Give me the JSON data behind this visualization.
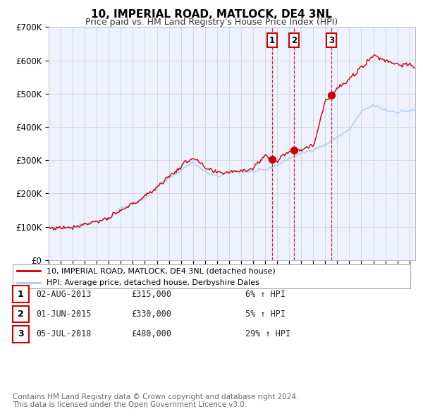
{
  "title": "10, IMPERIAL ROAD, MATLOCK, DE4 3NL",
  "subtitle": "Price paid vs. HM Land Registry's House Price Index (HPI)",
  "title_fontsize": 11,
  "subtitle_fontsize": 9,
  "line1_label": "10, IMPERIAL ROAD, MATLOCK, DE4 3NL (detached house)",
  "line2_label": "HPI: Average price, detached house, Derbyshire Dales",
  "line1_color": "#cc0000",
  "line2_color": "#aaccff",
  "background_color": "#eef2ff",
  "plot_bg_color": "#eef2ff",
  "ylim": [
    0,
    700000
  ],
  "yticks": [
    0,
    100000,
    200000,
    300000,
    400000,
    500000,
    600000,
    700000
  ],
  "ytick_labels": [
    "£0",
    "£100K",
    "£200K",
    "£300K",
    "£400K",
    "£500K",
    "£600K",
    "£700K"
  ],
  "xmin": 1995.0,
  "xmax": 2025.5,
  "transactions": [
    {
      "num": 1,
      "date": "02-AUG-2013",
      "year": 2013.58,
      "price": 315000,
      "hpi_pct": "6%",
      "direction": "↑"
    },
    {
      "num": 2,
      "date": "01-JUN-2015",
      "year": 2015.41,
      "price": 330000,
      "hpi_pct": "5%",
      "direction": "↑"
    },
    {
      "num": 3,
      "date": "05-JUL-2018",
      "year": 2018.51,
      "price": 480000,
      "hpi_pct": "29%",
      "direction": "↑"
    }
  ],
  "footnote_line1": "Contains HM Land Registry data © Crown copyright and database right 2024.",
  "footnote_line2": "This data is licensed under the Open Government Licence v3.0.",
  "footnote_fontsize": 7.5,
  "grid_color": "#cccccc",
  "legend_box_color": "#cc0000",
  "hpi_waypoints_x": [
    1995,
    1997,
    1998,
    2000,
    2001,
    2003,
    2004,
    2007,
    2008,
    2009,
    2010,
    2012,
    2013,
    2014,
    2015,
    2016,
    2018,
    2019,
    2020,
    2021,
    2022,
    2023,
    2024,
    2025.5
  ],
  "hpi_waypoints_y": [
    95000,
    100000,
    110000,
    125000,
    155000,
    185000,
    220000,
    295000,
    265000,
    250000,
    265000,
    265000,
    270000,
    285000,
    305000,
    320000,
    345000,
    370000,
    390000,
    445000,
    465000,
    450000,
    445000,
    450000
  ],
  "red_waypoints_x": [
    1995,
    1997,
    2000,
    2003,
    2007,
    2008,
    2009,
    2012,
    2013,
    2014,
    2015,
    2016,
    2017,
    2018,
    2019,
    2020,
    2021,
    2022,
    2023,
    2024,
    2025.5
  ],
  "red_waypoints_y": [
    95000,
    100000,
    125000,
    190000,
    310000,
    275000,
    260000,
    275000,
    315000,
    295000,
    330000,
    335000,
    340000,
    480000,
    515000,
    540000,
    580000,
    615000,
    600000,
    590000,
    580000
  ]
}
